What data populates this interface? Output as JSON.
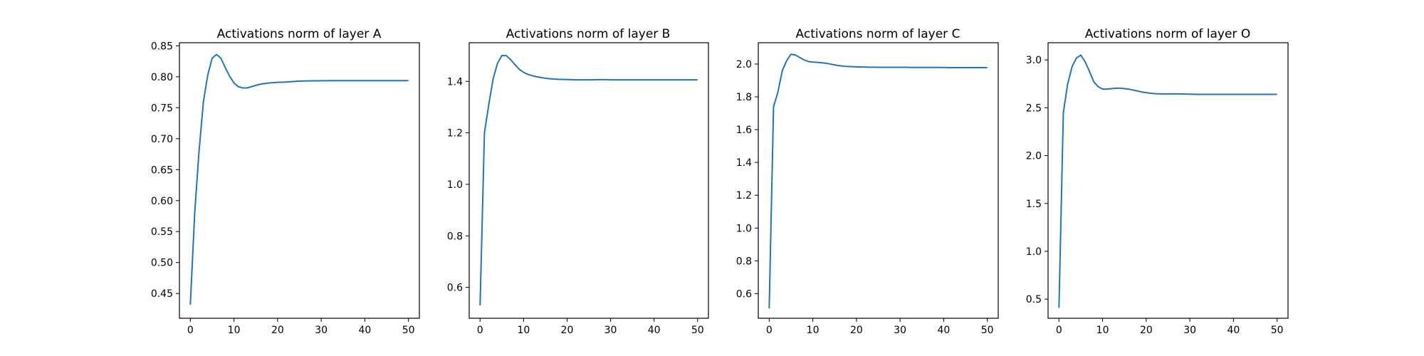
{
  "chart_data": [
    {
      "type": "line",
      "title": "Activations norm of layer A",
      "xlabel": "",
      "ylabel": "",
      "xlim": [
        -2.5,
        52.5
      ],
      "ylim": [
        0.41,
        0.855
      ],
      "xticks": [
        0,
        10,
        20,
        30,
        40,
        50
      ],
      "yticks": [
        0.45,
        0.5,
        0.55,
        0.6,
        0.65,
        0.7,
        0.75,
        0.8,
        0.85
      ],
      "ytick_labels": [
        "0.45",
        "0.50",
        "0.55",
        "0.60",
        "0.65",
        "0.70",
        "0.75",
        "0.80",
        "0.85"
      ],
      "grid": false,
      "color": "#1f77b4",
      "series": [
        {
          "x": [
            0,
            1,
            2,
            3,
            4,
            5,
            6,
            7,
            8,
            9,
            10,
            11,
            12,
            13,
            14,
            15,
            16,
            17,
            18,
            19,
            20,
            21,
            22,
            23,
            24,
            25,
            26,
            27,
            28,
            29,
            30,
            31,
            32,
            33,
            34,
            35,
            36,
            37,
            38,
            39,
            40,
            41,
            42,
            43,
            44,
            45,
            46,
            47,
            48,
            49,
            50
          ],
          "y": [
            0.432,
            0.58,
            0.68,
            0.76,
            0.803,
            0.83,
            0.836,
            0.83,
            0.815,
            0.801,
            0.79,
            0.784,
            0.782,
            0.782,
            0.784,
            0.786,
            0.788,
            0.789,
            0.79,
            0.7905,
            0.791,
            0.7912,
            0.7915,
            0.792,
            0.7925,
            0.793,
            0.7932,
            0.7934,
            0.7935,
            0.7935,
            0.7936,
            0.7936,
            0.7937,
            0.7937,
            0.7937,
            0.7938,
            0.7938,
            0.7938,
            0.7938,
            0.7938,
            0.7938,
            0.7938,
            0.7938,
            0.7938,
            0.7938,
            0.7938,
            0.7938,
            0.7938,
            0.7938,
            0.7938,
            0.7938
          ]
        }
      ]
    },
    {
      "type": "line",
      "title": "Activations norm of layer B",
      "xlabel": "",
      "ylabel": "",
      "xlim": [
        -2.5,
        52.5
      ],
      "ylim": [
        0.48,
        1.55
      ],
      "xticks": [
        0,
        10,
        20,
        30,
        40,
        50
      ],
      "yticks": [
        0.6,
        0.8,
        1.0,
        1.2,
        1.4
      ],
      "ytick_labels": [
        "0.6",
        "0.8",
        "1.0",
        "1.2",
        "1.4"
      ],
      "grid": false,
      "color": "#1f77b4",
      "series": [
        {
          "x": [
            0,
            1,
            2,
            3,
            4,
            5,
            6,
            7,
            8,
            9,
            10,
            11,
            12,
            13,
            14,
            15,
            16,
            17,
            18,
            19,
            20,
            21,
            22,
            23,
            24,
            25,
            26,
            27,
            28,
            29,
            30,
            31,
            32,
            33,
            34,
            35,
            36,
            37,
            38,
            39,
            40,
            41,
            42,
            43,
            44,
            45,
            46,
            47,
            48,
            49,
            50
          ],
          "y": [
            0.53,
            1.2,
            1.31,
            1.41,
            1.47,
            1.5,
            1.5,
            1.485,
            1.465,
            1.447,
            1.435,
            1.427,
            1.422,
            1.418,
            1.415,
            1.412,
            1.41,
            1.409,
            1.408,
            1.4075,
            1.407,
            1.4065,
            1.406,
            1.406,
            1.406,
            1.406,
            1.4062,
            1.4065,
            1.4065,
            1.4065,
            1.406,
            1.406,
            1.406,
            1.406,
            1.406,
            1.406,
            1.406,
            1.406,
            1.406,
            1.406,
            1.406,
            1.406,
            1.406,
            1.406,
            1.406,
            1.406,
            1.406,
            1.406,
            1.406,
            1.406,
            1.406
          ]
        }
      ]
    },
    {
      "type": "line",
      "title": "Activations norm of layer C",
      "xlabel": "",
      "ylabel": "",
      "xlim": [
        -2.5,
        52.5
      ],
      "ylim": [
        0.45,
        2.13
      ],
      "xticks": [
        0,
        10,
        20,
        30,
        40,
        50
      ],
      "yticks": [
        0.6,
        0.8,
        1.0,
        1.2,
        1.4,
        1.6,
        1.8,
        2.0
      ],
      "ytick_labels": [
        "0.6",
        "0.8",
        "1.0",
        "1.2",
        "1.4",
        "1.6",
        "1.8",
        "2.0"
      ],
      "grid": false,
      "color": "#1f77b4",
      "series": [
        {
          "x": [
            0,
            1,
            2,
            3,
            4,
            5,
            6,
            7,
            8,
            9,
            10,
            11,
            12,
            13,
            14,
            15,
            16,
            17,
            18,
            19,
            20,
            21,
            22,
            23,
            24,
            25,
            26,
            27,
            28,
            29,
            30,
            31,
            32,
            33,
            34,
            35,
            36,
            37,
            38,
            39,
            40,
            41,
            42,
            43,
            44,
            45,
            46,
            47,
            48,
            49,
            50
          ],
          "y": [
            0.51,
            1.74,
            1.83,
            1.96,
            2.02,
            2.06,
            2.055,
            2.04,
            2.025,
            2.015,
            2.012,
            2.01,
            2.008,
            2.005,
            2.0,
            1.995,
            1.99,
            1.987,
            1.985,
            1.984,
            1.983,
            1.982,
            1.982,
            1.981,
            1.981,
            1.98,
            1.98,
            1.98,
            1.98,
            1.98,
            1.98,
            1.98,
            1.9795,
            1.979,
            1.979,
            1.979,
            1.979,
            1.979,
            1.979,
            1.979,
            1.979,
            1.978,
            1.978,
            1.978,
            1.978,
            1.978,
            1.978,
            1.978,
            1.978,
            1.978,
            1.978
          ]
        }
      ]
    },
    {
      "type": "line",
      "title": "Activations norm of layer O",
      "xlabel": "",
      "ylabel": "",
      "xlim": [
        -2.5,
        52.5
      ],
      "ylim": [
        0.3,
        3.18
      ],
      "xticks": [
        0,
        10,
        20,
        30,
        40,
        50
      ],
      "yticks": [
        0.5,
        1.0,
        1.5,
        2.0,
        2.5,
        3.0
      ],
      "ytick_labels": [
        "0.5",
        "1.0",
        "1.5",
        "2.0",
        "2.5",
        "3.0"
      ],
      "grid": false,
      "color": "#1f77b4",
      "series": [
        {
          "x": [
            0,
            1,
            2,
            3,
            4,
            5,
            6,
            7,
            8,
            9,
            10,
            11,
            12,
            13,
            14,
            15,
            16,
            17,
            18,
            19,
            20,
            21,
            22,
            23,
            24,
            25,
            26,
            27,
            28,
            29,
            30,
            31,
            32,
            33,
            34,
            35,
            36,
            37,
            38,
            39,
            40,
            41,
            42,
            43,
            44,
            45,
            46,
            47,
            48,
            49,
            50
          ],
          "y": [
            0.41,
            2.45,
            2.75,
            2.93,
            3.02,
            3.05,
            2.98,
            2.88,
            2.77,
            2.72,
            2.695,
            2.695,
            2.7,
            2.705,
            2.705,
            2.7,
            2.695,
            2.685,
            2.675,
            2.665,
            2.658,
            2.652,
            2.648,
            2.645,
            2.645,
            2.645,
            2.645,
            2.645,
            2.644,
            2.643,
            2.642,
            2.641,
            2.64,
            2.64,
            2.64,
            2.64,
            2.64,
            2.64,
            2.64,
            2.64,
            2.64,
            2.64,
            2.64,
            2.64,
            2.64,
            2.64,
            2.64,
            2.64,
            2.64,
            2.64,
            2.64
          ]
        }
      ]
    }
  ]
}
